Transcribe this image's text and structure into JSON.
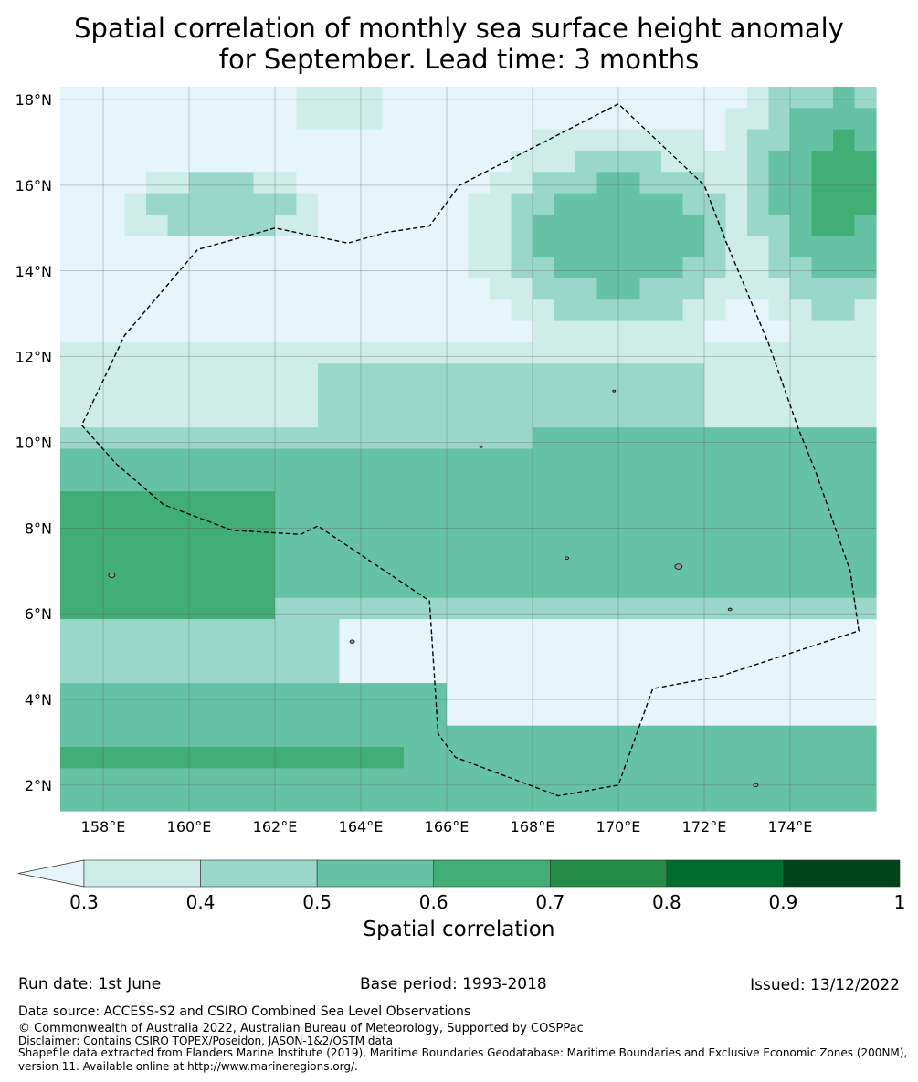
{
  "title_line1": "Spatial correlation of monthly sea surface height anomaly",
  "title_line2": "for September. Lead time: 3 months",
  "map": {
    "lon_range": [
      157,
      176
    ],
    "lat_range": [
      1.4,
      18.3
    ],
    "lon_ticks": [
      "158°E",
      "160°E",
      "162°E",
      "164°E",
      "166°E",
      "168°E",
      "170°E",
      "172°E",
      "174°E"
    ],
    "lon_tick_values": [
      158,
      160,
      162,
      164,
      166,
      168,
      170,
      172,
      174
    ],
    "lat_ticks": [
      "2°N",
      "4°N",
      "6°N",
      "8°N",
      "10°N",
      "12°N",
      "14°N",
      "16°N",
      "18°N"
    ],
    "lat_tick_values": [
      2,
      4,
      6,
      8,
      10,
      12,
      14,
      16,
      18
    ],
    "grid": true,
    "boundary": [
      [
        157.5,
        10.4
      ],
      [
        158.3,
        9.5
      ],
      [
        159.4,
        8.55
      ],
      [
        161.0,
        7.95
      ],
      [
        162.6,
        7.85
      ],
      [
        163.0,
        8.05
      ],
      [
        165.6,
        6.3
      ],
      [
        165.8,
        3.2
      ],
      [
        166.2,
        2.65
      ],
      [
        168.6,
        1.75
      ],
      [
        170.0,
        2.0
      ],
      [
        170.8,
        4.25
      ],
      [
        172.4,
        4.55
      ],
      [
        175.6,
        5.6
      ],
      [
        175.4,
        7.0
      ],
      [
        174.6,
        9.3
      ],
      [
        174.2,
        10.3
      ],
      [
        173.5,
        12.3
      ],
      [
        172.5,
        14.7
      ],
      [
        172.0,
        16.0
      ],
      [
        170.0,
        17.9
      ],
      [
        166.3,
        16.0
      ],
      [
        165.6,
        15.05
      ],
      [
        164.6,
        14.9
      ],
      [
        163.7,
        14.65
      ],
      [
        162.0,
        15.0
      ],
      [
        160.2,
        14.5
      ],
      [
        158.5,
        12.5
      ],
      [
        157.5,
        10.4
      ]
    ]
  },
  "colorbar": {
    "ticks": [
      "0.3",
      "0.4",
      "0.5",
      "0.6",
      "0.7",
      "0.8",
      "0.9",
      "1"
    ],
    "colors": [
      "#cdede6",
      "#99d8c9",
      "#66c2a4",
      "#41ae76",
      "#238b45",
      "#006d2c",
      "#00441b"
    ],
    "under_color": "#e5f5f9",
    "label": "Spatial correlation"
  },
  "footer": {
    "run_date": "Run date: 1st June",
    "base_period": "Base period: 1993-2018",
    "issued": "Issued: 13/12/2022",
    "data_source": "Data source: ACCESS-S2 and CSIRO Combined Sea Level Observations",
    "copyright": "© Commonwealth of Australia 2022, Australian Bureau of Meteorology, Supported by COSPPac",
    "disclaimer": "Disclaimer: Contains CSIRO TOPEX/Poseidon, JASON-1&2/OSTM data",
    "shapefile1": "Shapefile data extracted from Flanders Marine Institute (2019), Maritime Boundaries Geodatabase: Maritime Boundaries and Exclusive Economic Zones (200NM),",
    "shapefile2": "version 11. Available online at http://www.marineregions.org/."
  }
}
